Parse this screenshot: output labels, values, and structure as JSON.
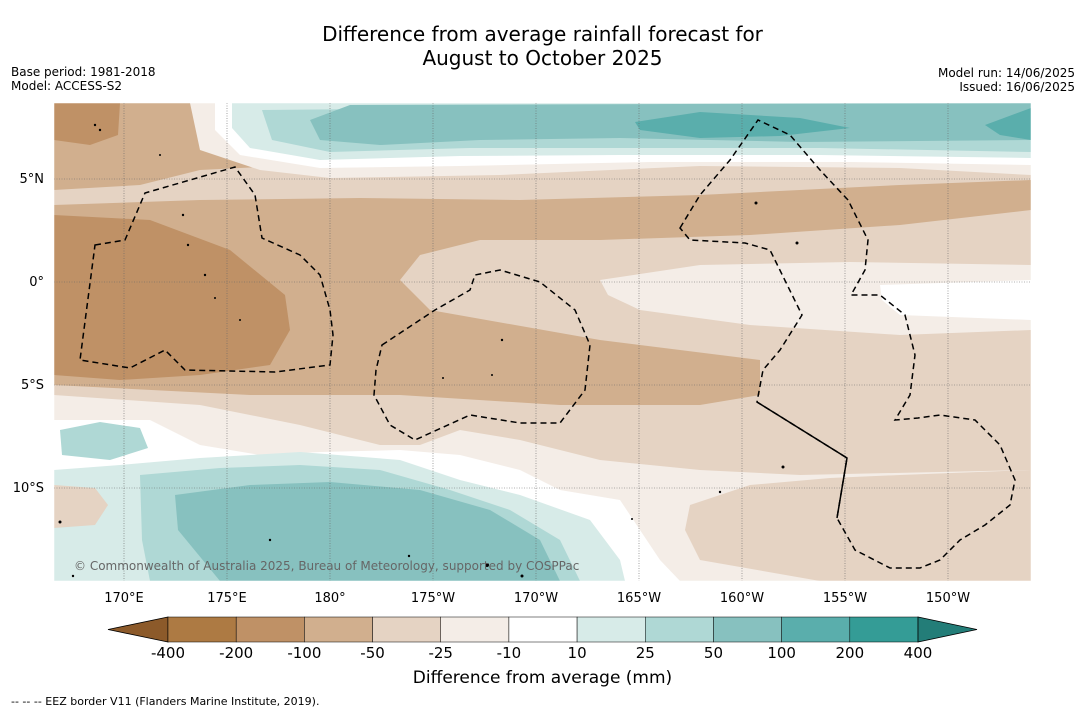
{
  "title": {
    "line1": "Difference from average rainfall forecast for",
    "line2": "August to October 2025"
  },
  "meta_left": {
    "base_period": "Base period: 1981-2018",
    "model": "Model: ACCESS-S2"
  },
  "meta_right": {
    "model_run": "Model run: 14/06/2025",
    "issued": "Issued: 16/06/2025"
  },
  "map": {
    "lat_labels": [
      "5°N",
      "0°",
      "5°S",
      "10°S"
    ],
    "lon_labels": [
      "170°E",
      "175°E",
      "180°",
      "175°W",
      "170°W",
      "165°W",
      "160°W",
      "155°W",
      "150°W"
    ],
    "copyright": "© Commonwealth of Australia 2025, Bureau of Meteorology, supported by COSPPac"
  },
  "colorbar": {
    "ticks": [
      "-400",
      "-200",
      "-100",
      "-50",
      "-25",
      "-10",
      "10",
      "25",
      "50",
      "100",
      "200",
      "400"
    ],
    "colors": [
      "#8c5a2a",
      "#ad7a43",
      "#bf9166",
      "#d1af8e",
      "#e5d3c3",
      "#f4ede7",
      "#ffffff",
      "#d7ebe8",
      "#afd8d5",
      "#87c1bf",
      "#5aaeac",
      "#349c96",
      "#237d78"
    ],
    "label": "Difference from average (mm)"
  },
  "footnote": "-- -- -- EEZ border V11 (Flanders Marine Institute, 2019)."
}
